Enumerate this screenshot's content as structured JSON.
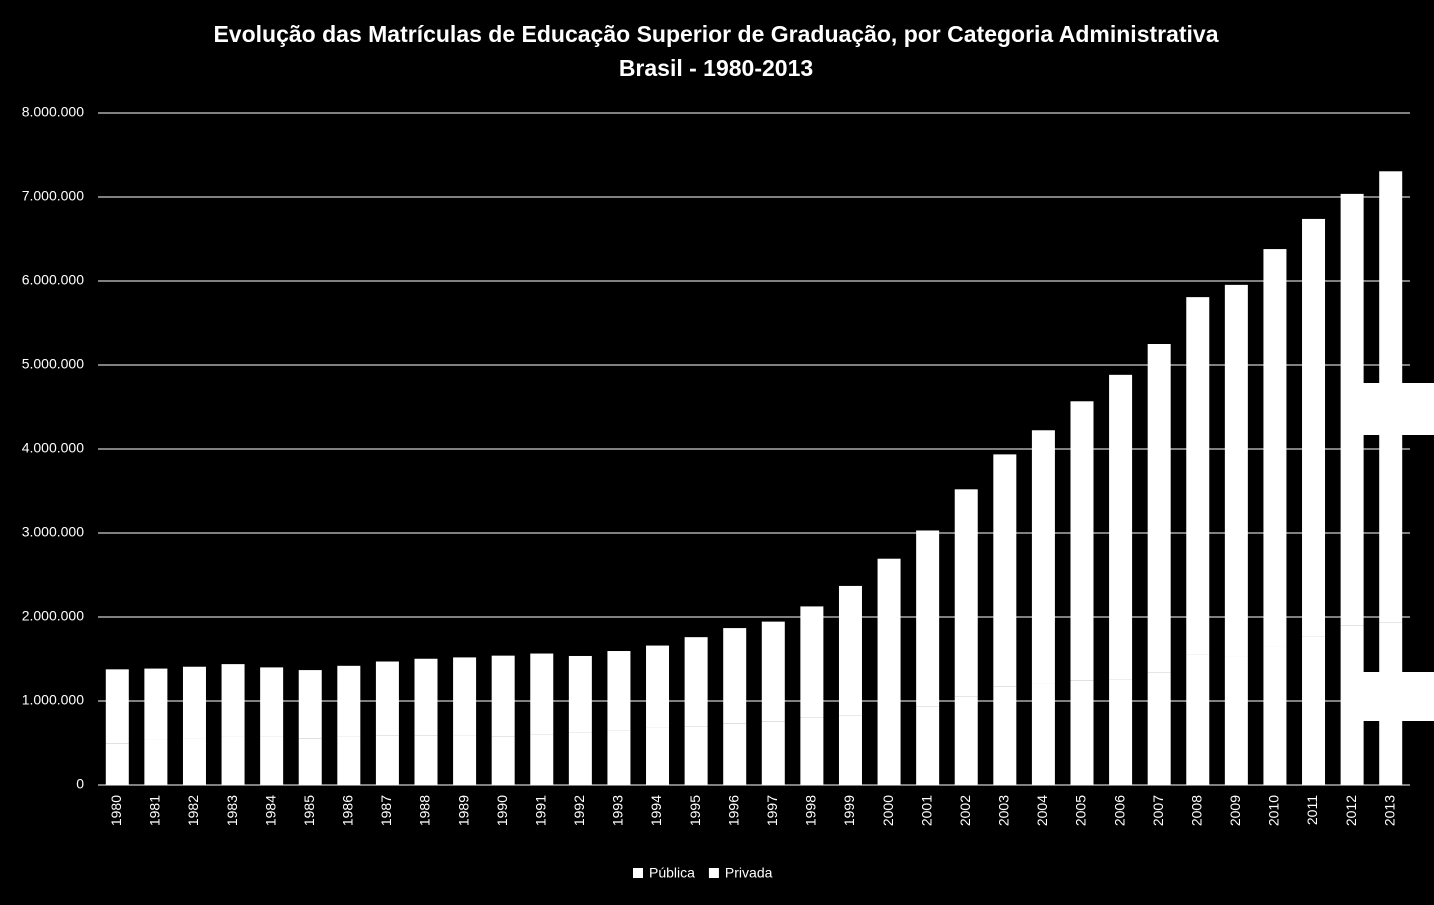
{
  "chart_data": {
    "type": "stacked_bar",
    "title": "Evolução das Matrículas de Educação Superior de Graduação, por Categoria Administrativa",
    "subtitle": "Brasil - 1980-2013",
    "categories": [
      "1980",
      "1981",
      "1982",
      "1983",
      "1984",
      "1985",
      "1986",
      "1987",
      "1988",
      "1989",
      "1990",
      "1991",
      "1992",
      "1993",
      "1994",
      "1995",
      "1996",
      "1997",
      "1998",
      "1999",
      "2000",
      "2001",
      "2002",
      "2003",
      "2004",
      "2005",
      "2006",
      "2007",
      "2008",
      "2009",
      "2010",
      "2011",
      "2012",
      "2013"
    ],
    "series": [
      {
        "name": "Pública",
        "color": "#ffffff",
        "values": [
          492000,
          536000,
          548000,
          577000,
          572000,
          557000,
          578000,
          585000,
          585000,
          584000,
          579000,
          606000,
          630000,
          654000,
          690000,
          701000,
          735000,
          759000,
          805000,
          832000,
          887000,
          939000,
          1052000,
          1176000,
          1214000,
          1247000,
          1251000,
          1335000,
          1553000,
          1524000,
          1643000,
          1773000,
          1897000,
          1933000
        ]
      },
      {
        "name": "Privada",
        "color": "#ffffff",
        "values": [
          885000,
          850000,
          860000,
          862000,
          828000,
          811000,
          841000,
          885000,
          918000,
          935000,
          961000,
          959000,
          906000,
          941000,
          970000,
          1059000,
          1133000,
          1186000,
          1321000,
          1538000,
          1807000,
          2091000,
          2468000,
          2760000,
          3009000,
          3321000,
          3632000,
          3915000,
          4255000,
          4430000,
          4737000,
          4966000,
          5140000,
          5373000
        ]
      }
    ],
    "ylim": [
      0,
      8000000
    ],
    "yticks": [
      0,
      {
        "value": 1000000,
        "label": "1.000.000"
      },
      {
        "value": 2000000,
        "label": "2.000.000"
      },
      {
        "value": 3000000,
        "label": "3.000.000"
      },
      {
        "value": 4000000,
        "label": "4.000.000"
      },
      {
        "value": 5000000,
        "label": "5.000.000"
      },
      {
        "value": 6000000,
        "label": "6.000.000"
      },
      {
        "value": 7000000,
        "label": "7.000.000"
      },
      {
        "value": 8000000,
        "label": "8.000.000"
      }
    ],
    "grid": true,
    "legend": "bottom"
  }
}
